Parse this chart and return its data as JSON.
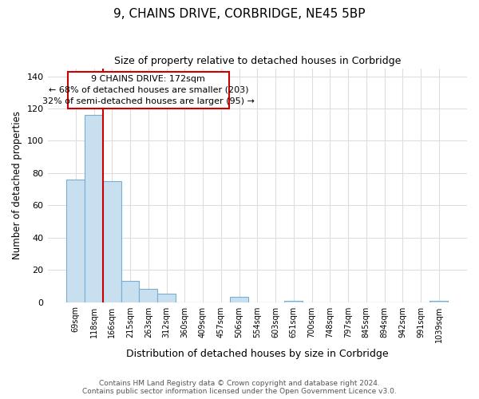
{
  "title": "9, CHAINS DRIVE, CORBRIDGE, NE45 5BP",
  "subtitle": "Size of property relative to detached houses in Corbridge",
  "xlabel": "Distribution of detached houses by size in Corbridge",
  "ylabel": "Number of detached properties",
  "categories": [
    "69sqm",
    "118sqm",
    "166sqm",
    "215sqm",
    "263sqm",
    "312sqm",
    "360sqm",
    "409sqm",
    "457sqm",
    "506sqm",
    "554sqm",
    "603sqm",
    "651sqm",
    "700sqm",
    "748sqm",
    "797sqm",
    "845sqm",
    "894sqm",
    "942sqm",
    "991sqm",
    "1039sqm"
  ],
  "values": [
    76,
    116,
    75,
    13,
    8,
    5,
    0,
    0,
    0,
    3,
    0,
    0,
    1,
    0,
    0,
    0,
    0,
    0,
    0,
    0,
    1
  ],
  "bar_color": "#c8dff0",
  "bar_edge_color": "#7aaed0",
  "vline_x_index": 2,
  "vline_color": "#cc0000",
  "annotation_text": "9 CHAINS DRIVE: 172sqm\n← 68% of detached houses are smaller (203)\n32% of semi-detached houses are larger (95) →",
  "annotation_box_color": "#ffffff",
  "annotation_box_edge_color": "#cc0000",
  "ylim": [
    0,
    145
  ],
  "yticks": [
    0,
    20,
    40,
    60,
    80,
    100,
    120,
    140
  ],
  "footer": "Contains HM Land Registry data © Crown copyright and database right 2024.\nContains public sector information licensed under the Open Government Licence v3.0.",
  "bg_color": "#ffffff",
  "plot_bg_color": "#ffffff",
  "grid_color": "#dddddd"
}
